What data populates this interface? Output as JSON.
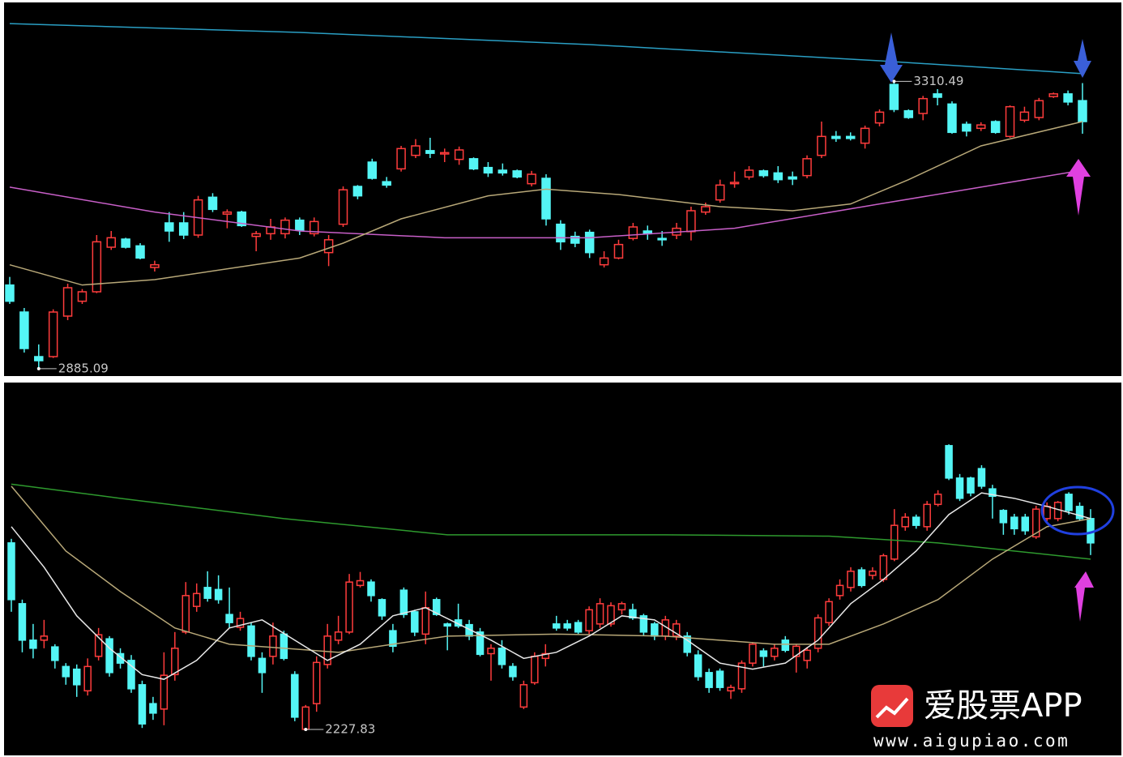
{
  "chart_data": [
    {
      "type": "candlestick",
      "up_color": "#ff3c3c",
      "down_color": "#54f5f5",
      "ylim": [
        2873,
        3431
      ],
      "values": [
        [
          3009,
          3021,
          2981,
          2985
        ],
        [
          2969,
          2975,
          2909,
          2915
        ],
        [
          2903,
          2921,
          2885.09,
          2897
        ],
        [
          2903,
          2973,
          2901,
          2969
        ],
        [
          2963,
          3011,
          2957,
          3005
        ],
        [
          2985,
          3003,
          2981,
          2999
        ],
        [
          2999,
          3083,
          2997,
          3073
        ],
        [
          3065,
          3089,
          3061,
          3079
        ],
        [
          3077,
          3079,
          3063,
          3065
        ],
        [
          3067,
          3071,
          3047,
          3049
        ],
        [
          3035,
          3045,
          3029,
          3039
        ],
        [
          3101,
          3117,
          3073,
          3089
        ],
        [
          3101,
          3117,
          3077,
          3083
        ],
        [
          3083,
          3141,
          3079,
          3135
        ],
        [
          3139,
          3145,
          3117,
          3121
        ],
        [
          3114,
          3121,
          3093,
          3117
        ],
        [
          3117,
          3119,
          3095,
          3097
        ],
        [
          3081,
          3089,
          3059,
          3085
        ],
        [
          3085,
          3107,
          3076,
          3095
        ],
        [
          3085,
          3109,
          3078,
          3105
        ],
        [
          3105,
          3109,
          3083,
          3090
        ],
        [
          3085,
          3109,
          3081,
          3103
        ],
        [
          3057,
          3083,
          3037,
          3076
        ],
        [
          3099,
          3155,
          3095,
          3150
        ],
        [
          3155,
          3157,
          3136,
          3141
        ],
        [
          3191,
          3196,
          3165,
          3167
        ],
        [
          3162,
          3169,
          3153,
          3157
        ],
        [
          3181,
          3215,
          3177,
          3211
        ],
        [
          3201,
          3225,
          3197,
          3215
        ],
        [
          3208,
          3227,
          3197,
          3204
        ],
        [
          3203,
          3211,
          3191,
          3205
        ],
        [
          3195,
          3214,
          3187,
          3209
        ],
        [
          3196,
          3198,
          3179,
          3181
        ],
        [
          3183,
          3191,
          3169,
          3175
        ],
        [
          3179,
          3189,
          3171,
          3175
        ],
        [
          3178,
          3180,
          3167,
          3169
        ],
        [
          3159,
          3178,
          3155,
          3173
        ],
        [
          3167,
          3173,
          3097,
          3107
        ],
        [
          3099,
          3105,
          3061,
          3073
        ],
        [
          3081,
          3088,
          3065,
          3071
        ],
        [
          3087,
          3091,
          3049,
          3057
        ],
        [
          3039,
          3059,
          3035,
          3049
        ],
        [
          3049,
          3076,
          3047,
          3069
        ],
        [
          3078,
          3101,
          3075,
          3095
        ],
        [
          3089,
          3097,
          3076,
          3085
        ],
        [
          3078,
          3089,
          3067,
          3076
        ],
        [
          3083,
          3101,
          3077,
          3093
        ],
        [
          3088,
          3125,
          3075,
          3119
        ],
        [
          3117,
          3131,
          3113,
          3125
        ],
        [
          3135,
          3165,
          3131,
          3157
        ],
        [
          3159,
          3177,
          3153,
          3161
        ],
        [
          3169,
          3185,
          3165,
          3179
        ],
        [
          3178,
          3180,
          3168,
          3171
        ],
        [
          3175,
          3185,
          3160,
          3165
        ],
        [
          3169,
          3177,
          3157,
          3166
        ],
        [
          3171,
          3201,
          3167,
          3196
        ],
        [
          3201,
          3251,
          3197,
          3229
        ],
        [
          3229,
          3237,
          3221,
          3226
        ],
        [
          3229,
          3235,
          3223,
          3226
        ],
        [
          3219,
          3245,
          3211,
          3241
        ],
        [
          3249,
          3269,
          3244,
          3265
        ],
        [
          3306,
          3310.49,
          3265,
          3269
        ],
        [
          3267,
          3269,
          3255,
          3257
        ],
        [
          3263,
          3289,
          3253,
          3285
        ],
        [
          3292,
          3299,
          3275,
          3287
        ],
        [
          3277,
          3281,
          3233,
          3235
        ],
        [
          3247,
          3251,
          3229,
          3237
        ],
        [
          3241,
          3250,
          3237,
          3246
        ],
        [
          3251,
          3253,
          3233,
          3235
        ],
        [
          3229,
          3275,
          3227,
          3273
        ],
        [
          3253,
          3273,
          3250,
          3265
        ],
        [
          3257,
          3286,
          3253,
          3282
        ],
        [
          3288,
          3294,
          3286,
          3292
        ],
        [
          3292,
          3297,
          3275,
          3280
        ],
        [
          3282,
          3308,
          3233,
          3251
        ]
      ],
      "series": [
        {
          "color": "#2a9fc4",
          "x": [
            0,
            20,
            40,
            60,
            74
          ],
          "values": [
            3396,
            3383,
            3365,
            3341,
            3322
          ]
        },
        {
          "color": "#c85fc8",
          "x": [
            0,
            10,
            20,
            30,
            40,
            50,
            60,
            74
          ],
          "values": [
            3154,
            3117,
            3089,
            3079,
            3079,
            3093,
            3129,
            3179
          ]
        },
        {
          "color": "#b8a878",
          "x": [
            0,
            5,
            10,
            20,
            23,
            27,
            33,
            37,
            42,
            49,
            54,
            58,
            62,
            67,
            74
          ],
          "values": [
            3039,
            3009,
            3017,
            3049,
            3071,
            3107,
            3141,
            3151,
            3143,
            3125,
            3119,
            3129,
            3165,
            3215,
            3251
          ]
        }
      ]
    },
    {
      "type": "candlestick",
      "up_color": "#ff3c3c",
      "down_color": "#54f5f5",
      "ylim": [
        2191.8,
        2743.8
      ],
      "values": [
        [
          2504,
          2510,
          2402,
          2420
        ],
        [
          2414,
          2420,
          2342,
          2360
        ],
        [
          2360,
          2384,
          2333,
          2348
        ],
        [
          2360,
          2390,
          2348,
          2366
        ],
        [
          2350,
          2354,
          2318,
          2330
        ],
        [
          2321,
          2326,
          2294,
          2306
        ],
        [
          2317,
          2324,
          2276,
          2294
        ],
        [
          2285,
          2333,
          2278,
          2321
        ],
        [
          2336,
          2378,
          2330,
          2368
        ],
        [
          2362,
          2366,
          2306,
          2312
        ],
        [
          2340,
          2348,
          2318,
          2326
        ],
        [
          2330,
          2338,
          2282,
          2288
        ],
        [
          2294,
          2300,
          2230,
          2236
        ],
        [
          2266,
          2276,
          2242,
          2252
        ],
        [
          2258,
          2342,
          2234,
          2308
        ],
        [
          2309,
          2372,
          2300,
          2348
        ],
        [
          2372,
          2446,
          2369,
          2426
        ],
        [
          2410,
          2444,
          2402,
          2429
        ],
        [
          2438,
          2462,
          2417,
          2422
        ],
        [
          2435,
          2456,
          2414,
          2420
        ],
        [
          2398,
          2438,
          2378,
          2386
        ],
        [
          2379,
          2402,
          2374,
          2392
        ],
        [
          2381,
          2386,
          2330,
          2336
        ],
        [
          2333,
          2342,
          2282,
          2312
        ],
        [
          2336,
          2386,
          2324,
          2366
        ],
        [
          2369,
          2374,
          2330,
          2333
        ],
        [
          2309,
          2314,
          2240,
          2246
        ],
        [
          2228,
          2264,
          2227.83,
          2261
        ],
        [
          2266,
          2336,
          2254,
          2327
        ],
        [
          2324,
          2384,
          2318,
          2366
        ],
        [
          2360,
          2396,
          2354,
          2372
        ],
        [
          2372,
          2458,
          2369,
          2446
        ],
        [
          2441,
          2461,
          2438,
          2448
        ],
        [
          2446,
          2450,
          2417,
          2426
        ],
        [
          2420,
          2422,
          2390,
          2396
        ],
        [
          2374,
          2384,
          2342,
          2351
        ],
        [
          2434,
          2438,
          2393,
          2398
        ],
        [
          2402,
          2405,
          2366,
          2372
        ],
        [
          2369,
          2432,
          2354,
          2408
        ],
        [
          2420,
          2423,
          2396,
          2398
        ],
        [
          2384,
          2386,
          2345,
          2381
        ],
        [
          2390,
          2414,
          2378,
          2381
        ],
        [
          2383,
          2390,
          2360,
          2366
        ],
        [
          2372,
          2378,
          2336,
          2339
        ],
        [
          2340,
          2354,
          2300,
          2348
        ],
        [
          2348,
          2360,
          2318,
          2324
        ],
        [
          2321,
          2326,
          2300,
          2306
        ],
        [
          2261,
          2300,
          2258,
          2294
        ],
        [
          2297,
          2342,
          2294,
          2336
        ],
        [
          2333,
          2354,
          2321,
          2340
        ],
        [
          2384,
          2396,
          2374,
          2378
        ],
        [
          2384,
          2390,
          2374,
          2378
        ],
        [
          2386,
          2390,
          2369,
          2372
        ],
        [
          2374,
          2410,
          2369,
          2405
        ],
        [
          2384,
          2422,
          2378,
          2414
        ],
        [
          2384,
          2416,
          2380,
          2411
        ],
        [
          2405,
          2417,
          2398,
          2414
        ],
        [
          2405,
          2414,
          2390,
          2393
        ],
        [
          2396,
          2399,
          2366,
          2372
        ],
        [
          2384,
          2387,
          2360,
          2366
        ],
        [
          2366,
          2396,
          2360,
          2390
        ],
        [
          2366,
          2390,
          2360,
          2384
        ],
        [
          2366,
          2372,
          2336,
          2342
        ],
        [
          2338,
          2345,
          2300,
          2306
        ],
        [
          2312,
          2318,
          2282,
          2290
        ],
        [
          2314,
          2318,
          2285,
          2290
        ],
        [
          2285,
          2294,
          2273,
          2290
        ],
        [
          2288,
          2330,
          2282,
          2326
        ],
        [
          2326,
          2357,
          2321,
          2354
        ],
        [
          2344,
          2348,
          2321,
          2336
        ],
        [
          2336,
          2354,
          2330,
          2348
        ],
        [
          2360,
          2366,
          2342,
          2345
        ],
        [
          2336,
          2354,
          2312,
          2351
        ],
        [
          2330,
          2350,
          2318,
          2345
        ],
        [
          2348,
          2398,
          2342,
          2393
        ],
        [
          2386,
          2422,
          2381,
          2417
        ],
        [
          2426,
          2450,
          2420,
          2441
        ],
        [
          2438,
          2468,
          2432,
          2462
        ],
        [
          2464,
          2468,
          2438,
          2441
        ],
        [
          2456,
          2468,
          2450,
          2462
        ],
        [
          2450,
          2488,
          2446,
          2485
        ],
        [
          2480,
          2554,
          2477,
          2530
        ],
        [
          2528,
          2548,
          2522,
          2542
        ],
        [
          2542,
          2546,
          2525,
          2530
        ],
        [
          2528,
          2566,
          2522,
          2561
        ],
        [
          2561,
          2582,
          2558,
          2576
        ],
        [
          2648,
          2650,
          2597,
          2600
        ],
        [
          2600,
          2606,
          2566,
          2570
        ],
        [
          2600,
          2602,
          2573,
          2578
        ],
        [
          2614,
          2619,
          2584,
          2588
        ],
        [
          2584,
          2590,
          2540,
          2573
        ],
        [
          2552,
          2554,
          2516,
          2534
        ],
        [
          2542,
          2547,
          2516,
          2525
        ],
        [
          2542,
          2547,
          2516,
          2522
        ],
        [
          2513,
          2559,
          2510,
          2554
        ],
        [
          2540,
          2564,
          2536,
          2558
        ],
        [
          2540,
          2566,
          2536,
          2564
        ],
        [
          2576,
          2579,
          2546,
          2552
        ],
        [
          2558,
          2564,
          2537,
          2540
        ],
        [
          2540,
          2554,
          2486,
          2504
        ]
      ],
      "series": [
        {
          "color": "#2e9a2e",
          "x": [
            0,
            10,
            25,
            40,
            60,
            75,
            85,
            92,
            99
          ],
          "values": [
            2591,
            2570,
            2540,
            2516,
            2516,
            2514,
            2504,
            2492,
            2480
          ]
        },
        {
          "color": "#b8a878",
          "x": [
            0,
            5,
            10,
            15,
            20,
            30,
            40,
            50,
            60,
            70,
            75,
            80,
            85,
            90,
            95,
            99
          ],
          "values": [
            2588,
            2492,
            2432,
            2378,
            2354,
            2342,
            2366,
            2369,
            2366,
            2354,
            2354,
            2384,
            2420,
            2480,
            2528,
            2540
          ]
        },
        {
          "color": "#e8e8e8",
          "x": [
            0,
            3,
            6,
            9,
            12,
            14,
            17,
            20,
            23,
            26,
            29,
            32,
            35,
            38,
            41,
            44,
            47,
            50,
            53,
            56,
            59,
            62,
            65,
            68,
            71,
            74,
            77,
            80,
            83,
            86,
            89,
            92,
            95,
            99
          ],
          "values": [
            2528,
            2468,
            2396,
            2348,
            2309,
            2302,
            2330,
            2378,
            2390,
            2360,
            2330,
            2354,
            2396,
            2408,
            2384,
            2360,
            2333,
            2342,
            2366,
            2396,
            2390,
            2360,
            2326,
            2317,
            2326,
            2360,
            2414,
            2450,
            2492,
            2546,
            2578,
            2570,
            2558,
            2540
          ]
        }
      ]
    }
  ],
  "watermark": {
    "name": "爱股票APP",
    "url": "www.aigupiao.com"
  }
}
